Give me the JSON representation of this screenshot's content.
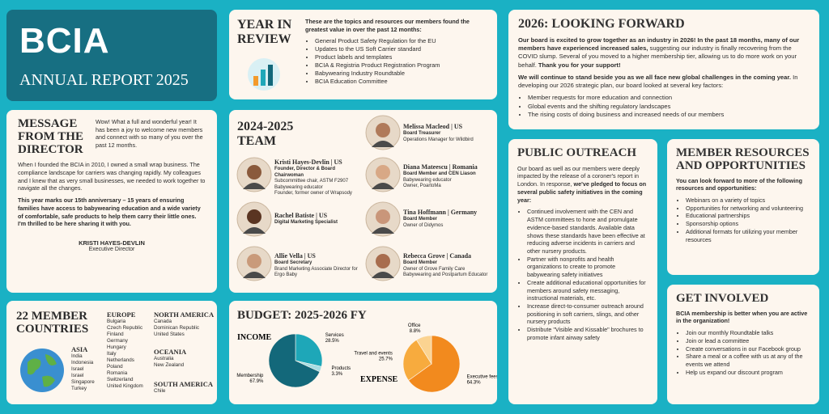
{
  "header": {
    "logo": "BCIA",
    "title": "ANNUAL REPORT 2025"
  },
  "director": {
    "title": "MESSAGE FROM THE DIRECTOR",
    "intro": "Wow! What a full and wonderful year! It has been a joy to welcome new members and connect with so many of you over the past 12 months.",
    "paragraphs": [
      [
        {
          "text": "When I founded the BCIA in 2010, I owned a small wrap business. The compliance landscape for carriers was changing rapidly. My colleagues and I knew that as very small businesses, we needed to work together to navigate all the changes.",
          "bold": false
        }
      ],
      [
        {
          "text": "This year marks our 15th anniversary – 15 years of ensuring families have access to babywearing education and a wide variety of comfortable, safe products to help them carry their little ones. I'm thrilled to be here sharing it with you.",
          "bold": true
        }
      ]
    ],
    "signature_name": "KRISTI HAYES-DEVLIN",
    "signature_role": "Executive Director"
  },
  "countries": {
    "title": "22 MEMBER COUNTRIES",
    "regions": [
      {
        "name": "ASIA",
        "countries": [
          "India",
          "Indonesia",
          "Israel",
          "Israel",
          "Singapore",
          "Turkey"
        ]
      },
      {
        "name": "EUROPE",
        "countries": [
          "Bulgaria",
          "Czech Republic",
          "Finland",
          "Germany",
          "Hungary",
          "Italy",
          "Netherlands",
          "Poland",
          "Romania",
          "Switzerland",
          "United Kingdom"
        ]
      },
      {
        "name": "NORTH AMERICA",
        "countries": [
          "Canada",
          "Dominican Republic",
          "United States"
        ]
      },
      {
        "name": "OCEANIA",
        "countries": [
          "Australia",
          "New Zealand"
        ]
      },
      {
        "name": "SOUTH AMERICA",
        "countries": [
          "Chile"
        ]
      }
    ]
  },
  "review": {
    "title": "YEAR IN REVIEW",
    "intro": "These are the topics and resources our members found the greatest value in over the past 12 months:",
    "items": [
      "General Product Safety Regulation for the EU",
      "Updates to the US Soft Carrier standard",
      "Product labels and templates",
      "BCIA & Registria Product Registration Program",
      "Babywearing Industry Roundtable",
      "BCIA Education Committee"
    ]
  },
  "team": {
    "title": "2024-2025 TEAM",
    "members": [
      {
        "name": "Kristi Hayes-Devlin | US",
        "role": "Founder, Director & Board Chairwoman",
        "details": [
          "Subcommittee chair, ASTM F2907",
          "Babywearing educator",
          "Founder, former owner of Wrapsody"
        ]
      },
      {
        "name": "Rachel Batiste | US",
        "role": "Digital Marketing Specialist",
        "details": []
      },
      {
        "name": "Allie Vella | US",
        "role": "Board Secretary",
        "details": [
          "Brand Marketing Associate Director for Ergo Baby"
        ]
      },
      {
        "name": "Melissa Macleod | US",
        "role": "Board Treasurer",
        "details": [
          "Operations Manager for Wildbird"
        ]
      },
      {
        "name": "Diana Mateescu | Romania",
        "role": "Board Member and CEN Liason",
        "details": [
          "Babywearing educator",
          "Owner, PoartoMa"
        ]
      },
      {
        "name": "Tina Hoffmann | Germany",
        "role": "Board Member",
        "details": [
          "Owner of Didymos"
        ]
      },
      {
        "name": "Rebecca Grove | Canada",
        "role": "Board Member",
        "details": [
          "Owner of Grove Family Care",
          "Babywearing and Postpartum Educator"
        ]
      }
    ]
  },
  "budget": {
    "title": "BUDGET: 2025-2026 FY",
    "income": {
      "type": "pie",
      "title": "INCOME",
      "categories": [
        "Services",
        "Products",
        "Membership"
      ],
      "values": [
        28.5,
        3.3,
        67.9
      ],
      "value_labels": [
        "28.5%",
        "3.3%",
        "67.9%"
      ],
      "colors": [
        "#1ea7b8",
        "#a6dde3",
        "#13687a"
      ]
    },
    "expense": {
      "type": "pie",
      "title": "EXPENSE",
      "categories": [
        "Executive fees",
        "Travel and events",
        "Office"
      ],
      "values": [
        64.3,
        25.7,
        8.8
      ],
      "value_labels": [
        "64.3%",
        "25.7%",
        "8.8%"
      ],
      "colors": [
        "#f28a1e",
        "#f7ab3e",
        "#fbd391"
      ]
    }
  },
  "outlook": {
    "title": "2026: LOOKING FORWARD",
    "paragraphs": [
      [
        {
          "text": "Our board is excited to grow together as an industry in 2026! In the past 18 months, many of our members have experienced increased sales,",
          "bold": true
        },
        {
          "text": " suggesting our industry is finally recovering from the COVID slump. Several of you moved to a higher membership tier, allowing us to do more work on your behalf. ",
          "bold": false
        },
        {
          "text": "Thank you for your support!",
          "bold": true
        }
      ],
      [
        {
          "text": "We will continue to stand beside you as we all face new global challenges in the coming year.",
          "bold": true
        },
        {
          "text": " In developing our 2026 strategic plan, our board looked at several key factors:",
          "bold": false
        }
      ]
    ],
    "items": [
      "Member requests for more education and connection",
      "Global events and the shifting regulatory landscapes",
      "The rising costs of doing business and increased needs of our members"
    ]
  },
  "outreach": {
    "title": "PUBLIC OUTREACH",
    "paragraphs": [
      [
        {
          "text": "Our board as well as our members were deeply impacted by the release of a coroner's report in London. In response, ",
          "bold": false
        },
        {
          "text": "we've pledged to focus on several public safety initiatives in the coming year:",
          "bold": true
        }
      ]
    ],
    "items": [
      "Continued involvement with the CEN and ASTM committees to hone and promulgate evidence-based standards. Available data shows these standards have been effective at reducing adverse incidents in carriers and other nursery products.",
      "Partner with nonprofits and health organizations to create to promote babywearing safety initiatives",
      "Create additional educational opportunities for members around safety messaging, instructional materials, etc.",
      "Increase direct-to-consumer outreach around positioning in soft carriers, slings, and other nursery products",
      "Distribute \"Visible and Kissable\" brochures to promote infant airway safety"
    ]
  },
  "resources": {
    "title": "MEMBER RESOURCES AND OPPORTUNITIES",
    "paragraphs": [
      [
        {
          "text": "You can look forward to more of the following resources and opportunities:",
          "bold": true
        }
      ]
    ],
    "items": [
      "Webinars on a variety of topics",
      "Opportunities for networking and volunteering",
      "Educational partnerships",
      "Sponsorship options",
      "Additional formats for utilizing your member resources"
    ]
  },
  "involved": {
    "title": "GET INVOLVED",
    "paragraphs": [
      [
        {
          "text": "BCIA membership is better when you are active in the organization!",
          "bold": true
        }
      ]
    ],
    "items": [
      "Join our monthly Roundtable talks",
      "Join or lead a committee",
      "Create conversations in our Facebook group",
      "Share a meal or a coffee with us at any of the events we attend",
      "Help us expand our discount program"
    ]
  }
}
